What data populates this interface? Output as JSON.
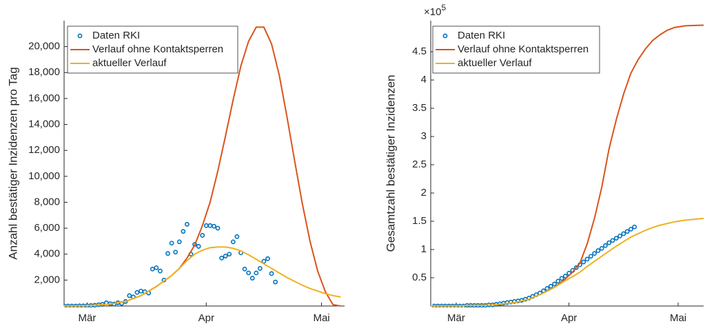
{
  "chart_data": [
    {
      "type": "line",
      "ylabel": "Anzahl bestätiger Inzidenzen pro Tag",
      "xlim": [
        -6,
        67
      ],
      "ylim": [
        0,
        22000
      ],
      "xticks": [
        {
          "value": 0,
          "label": "Mär"
        },
        {
          "value": 31,
          "label": "Apr"
        },
        {
          "value": 61,
          "label": "Mai"
        }
      ],
      "yticks": [
        {
          "value": 2000,
          "label": "2,000"
        },
        {
          "value": 4000,
          "label": "4,000"
        },
        {
          "value": 6000,
          "label": "6,000"
        },
        {
          "value": 8000,
          "label": "8,000"
        },
        {
          "value": 10000,
          "label": "10,000"
        },
        {
          "value": 12000,
          "label": "12,000"
        },
        {
          "value": 14000,
          "label": "14,000"
        },
        {
          "value": 16000,
          "label": "16,000"
        },
        {
          "value": 18000,
          "label": "18,000"
        },
        {
          "value": 20000,
          "label": "20,000"
        }
      ],
      "legend": "upper left",
      "series": [
        {
          "name": "Daten RKI",
          "kind": "scatter",
          "color": "#0072bd",
          "x": [
            -6,
            -5,
            -4,
            -3,
            -2,
            -1,
            0,
            1,
            2,
            3,
            4,
            5,
            6,
            7,
            8,
            9,
            10,
            11,
            12,
            13,
            14,
            15,
            16,
            17,
            18,
            19,
            20,
            21,
            22,
            23,
            24,
            25,
            26,
            27,
            28,
            29,
            30,
            31,
            32,
            33,
            34,
            35,
            36,
            37,
            38,
            39,
            40,
            41,
            42,
            43,
            44,
            45,
            46,
            47,
            48,
            49
          ],
          "values": [
            0,
            0,
            0,
            0,
            10,
            10,
            20,
            40,
            60,
            100,
            130,
            250,
            180,
            150,
            250,
            200,
            350,
            800,
            700,
            1050,
            1150,
            1100,
            1000,
            2850,
            2950,
            2700,
            2000,
            4050,
            4850,
            4150,
            4950,
            5750,
            6300,
            4000,
            4750,
            4600,
            5450,
            6200,
            6200,
            6150,
            6000,
            3700,
            3850,
            4000,
            4950,
            5350,
            4100,
            2850,
            2550,
            2150,
            2550,
            2900,
            3450,
            3650,
            2500,
            1850
          ]
        },
        {
          "name": "Verlauf ohne Kontaktsperren",
          "kind": "line",
          "color": "#d95319",
          "x": [
            -6,
            0,
            6,
            10,
            14,
            18,
            22,
            24,
            26,
            28,
            30,
            32,
            34,
            36,
            38,
            40,
            42,
            44,
            46,
            48,
            50,
            52,
            54,
            56,
            58,
            60,
            62,
            64,
            66
          ],
          "values": [
            0,
            30,
            150,
            350,
            800,
            1500,
            2350,
            2900,
            3700,
            4700,
            6200,
            8000,
            10400,
            13100,
            15900,
            18500,
            20400,
            21500,
            21500,
            20200,
            17800,
            14600,
            11200,
            7900,
            5000,
            2700,
            1100,
            100,
            0
          ]
        },
        {
          "name": "aktueller Verlauf",
          "kind": "line",
          "color": "#edb120",
          "x": [
            -6,
            0,
            6,
            10,
            14,
            18,
            22,
            24,
            26,
            28,
            30,
            32,
            34,
            36,
            38,
            40,
            42,
            44,
            46,
            48,
            50,
            52,
            54,
            56,
            58,
            60,
            62,
            64,
            66
          ],
          "values": [
            0,
            30,
            150,
            350,
            800,
            1500,
            2350,
            2900,
            3500,
            4000,
            4300,
            4500,
            4550,
            4550,
            4450,
            4250,
            3950,
            3600,
            3250,
            2900,
            2550,
            2200,
            1900,
            1600,
            1350,
            1150,
            950,
            800,
            700
          ]
        }
      ]
    },
    {
      "type": "line",
      "ylabel": "Gesamtzahl bestätiger Inzidenzen",
      "ylabel_multiplier": "×10",
      "ylabel_multiplier_exponent": "5",
      "xlim": [
        -7,
        68
      ],
      "ylim": [
        0,
        5.05
      ],
      "xticks": [
        {
          "value": 0,
          "label": "Mär"
        },
        {
          "value": 31,
          "label": "Apr"
        },
        {
          "value": 61,
          "label": "Mai"
        }
      ],
      "yticks": [
        0.5,
        1,
        1.5,
        2,
        2.5,
        3,
        3.5,
        4,
        4.5
      ],
      "legend": "upper left",
      "series": [
        {
          "name": "Daten RKI",
          "kind": "scatter",
          "color": "#0072bd",
          "x": [
            -6,
            -5,
            -4,
            -3,
            -2,
            -1,
            0,
            1,
            2,
            3,
            4,
            5,
            6,
            7,
            8,
            9,
            10,
            11,
            12,
            13,
            14,
            15,
            16,
            17,
            18,
            19,
            20,
            21,
            22,
            23,
            24,
            25,
            26,
            27,
            28,
            29,
            30,
            31,
            32,
            33,
            34,
            35,
            36,
            37,
            38,
            39,
            40,
            41,
            42,
            43,
            44,
            45,
            46,
            47,
            48,
            49
          ],
          "values": [
            0,
            0,
            0,
            0,
            0,
            0,
            0,
            0,
            0,
            0.01,
            0.01,
            0.01,
            0.01,
            0.01,
            0.01,
            0.02,
            0.02,
            0.03,
            0.04,
            0.05,
            0.06,
            0.07,
            0.08,
            0.09,
            0.1,
            0.12,
            0.14,
            0.17,
            0.2,
            0.23,
            0.27,
            0.31,
            0.35,
            0.39,
            0.44,
            0.49,
            0.53,
            0.58,
            0.63,
            0.68,
            0.73,
            0.78,
            0.83,
            0.88,
            0.93,
            0.98,
            1.02,
            1.07,
            1.12,
            1.16,
            1.2,
            1.24,
            1.28,
            1.32,
            1.36,
            1.4
          ]
        },
        {
          "name": "Verlauf ohne Kontaktsperren",
          "kind": "line",
          "color": "#d95319",
          "x": [
            -7,
            0,
            10,
            16,
            20,
            24,
            27,
            30,
            32,
            34,
            36,
            38,
            40,
            42,
            44,
            46,
            48,
            50,
            52,
            54,
            56,
            58,
            60,
            63,
            68
          ],
          "values": [
            0,
            0.003,
            0.02,
            0.06,
            0.12,
            0.23,
            0.33,
            0.48,
            0.6,
            0.76,
            1.1,
            1.55,
            2.1,
            2.78,
            3.3,
            3.75,
            4.12,
            4.36,
            4.55,
            4.7,
            4.8,
            4.88,
            4.93,
            4.96,
            4.97
          ]
        },
        {
          "name": "aktueller Verlauf",
          "kind": "line",
          "color": "#edb120",
          "x": [
            -7,
            0,
            10,
            16,
            20,
            24,
            27,
            30,
            32,
            34,
            36,
            38,
            40,
            42,
            44,
            46,
            48,
            50,
            52,
            54,
            56,
            58,
            60,
            63,
            68
          ],
          "values": [
            0,
            0.003,
            0.02,
            0.06,
            0.12,
            0.23,
            0.33,
            0.45,
            0.52,
            0.6,
            0.7,
            0.79,
            0.88,
            0.97,
            1.06,
            1.14,
            1.22,
            1.28,
            1.34,
            1.39,
            1.43,
            1.46,
            1.49,
            1.52,
            1.55
          ]
        }
      ]
    }
  ]
}
